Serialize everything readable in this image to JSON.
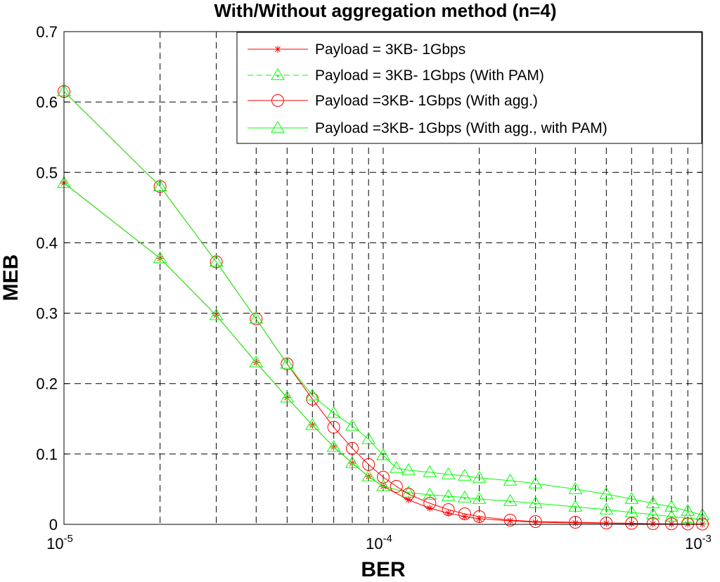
{
  "chart_data": {
    "type": "line",
    "title": "With/Without aggregation method (n=4)",
    "xlabel": "BER",
    "ylabel": "MEB",
    "xscale": "log",
    "xlim": [
      1e-05,
      0.001
    ],
    "ylim": [
      0,
      0.7
    ],
    "yticks": [
      "0",
      "0.1",
      "0.2",
      "0.3",
      "0.4",
      "0.5",
      "0.6",
      "0.7"
    ],
    "xticks": [
      {
        "base": "10",
        "exp": "-5",
        "value": 1e-05
      },
      {
        "base": "10",
        "exp": "-4",
        "value": 0.0001
      },
      {
        "base": "10",
        "exp": "-3",
        "value": 0.001
      }
    ],
    "grid": true,
    "legend_position": "top-right",
    "series": [
      {
        "name": "Payload = 3KB- 1Gbps",
        "color": "#ff0000",
        "marker": "star",
        "x": [
          1e-05,
          2e-05,
          3e-05,
          4e-05,
          5e-05,
          6e-05,
          7e-05,
          8e-05,
          9e-05,
          0.0001,
          0.00012,
          0.00014,
          0.00016,
          0.00018,
          0.0002,
          0.00025,
          0.0003,
          0.0004,
          0.0005,
          0.0006,
          0.0007,
          0.0008,
          0.0009,
          0.001
        ],
        "y": [
          0.485,
          0.378,
          0.297,
          0.23,
          0.18,
          0.141,
          0.11,
          0.087,
          0.068,
          0.054,
          0.035,
          0.023,
          0.016,
          0.011,
          0.008,
          0.005,
          0.003,
          0.002,
          0.0015,
          0.001,
          0.0008,
          0.0006,
          0.0005,
          0.0004
        ]
      },
      {
        "name": "Payload = 3KB- 1Gbps (With PAM)",
        "color": "#00ff00",
        "marker": "triangle-dot",
        "x": [
          1e-05,
          2e-05,
          3e-05,
          4e-05,
          5e-05,
          6e-05,
          7e-05,
          8e-05,
          9e-05,
          0.0001,
          0.00012,
          0.00014,
          0.00016,
          0.00018,
          0.0002,
          0.00025,
          0.0003,
          0.0004,
          0.0005,
          0.0006,
          0.0007,
          0.0008,
          0.0009,
          0.001
        ],
        "y": [
          0.485,
          0.378,
          0.297,
          0.23,
          0.18,
          0.141,
          0.11,
          0.087,
          0.068,
          0.054,
          0.045,
          0.042,
          0.04,
          0.038,
          0.036,
          0.033,
          0.03,
          0.025,
          0.021,
          0.017,
          0.014,
          0.011,
          0.009,
          0.007
        ]
      },
      {
        "name": "Payload =3KB- 1Gbps (With agg.)",
        "color": "#ff0000",
        "marker": "circle",
        "x": [
          1e-05,
          2e-05,
          3e-05,
          4e-05,
          5e-05,
          6e-05,
          7e-05,
          8e-05,
          9e-05,
          0.0001,
          0.00011,
          0.00012,
          0.00014,
          0.00016,
          0.00018,
          0.0002,
          0.00025,
          0.0003,
          0.0004,
          0.0005,
          0.0006,
          0.0007,
          0.0008,
          0.0009,
          0.001
        ],
        "y": [
          0.615,
          0.48,
          0.373,
          0.292,
          0.228,
          0.178,
          0.138,
          0.108,
          0.085,
          0.067,
          0.054,
          0.043,
          0.03,
          0.021,
          0.015,
          0.011,
          0.006,
          0.004,
          0.003,
          0.002,
          0.0015,
          0.001,
          0.0008,
          0.0006,
          0.0005
        ]
      },
      {
        "name": "Payload =3KB- 1Gbps (With agg., with PAM)",
        "color": "#00ff00",
        "marker": "triangle",
        "x": [
          1e-05,
          2e-05,
          3e-05,
          4e-05,
          5e-05,
          6e-05,
          7e-05,
          8e-05,
          9e-05,
          0.0001,
          0.00011,
          0.00012,
          0.00014,
          0.00016,
          0.00018,
          0.0002,
          0.00025,
          0.0003,
          0.0004,
          0.0005,
          0.0006,
          0.0007,
          0.0008,
          0.0009,
          0.001
        ],
        "y": [
          0.615,
          0.48,
          0.373,
          0.292,
          0.228,
          0.183,
          0.158,
          0.14,
          0.121,
          0.098,
          0.08,
          0.077,
          0.074,
          0.071,
          0.069,
          0.066,
          0.062,
          0.058,
          0.05,
          0.043,
          0.036,
          0.03,
          0.025,
          0.019,
          0.013
        ]
      }
    ]
  }
}
